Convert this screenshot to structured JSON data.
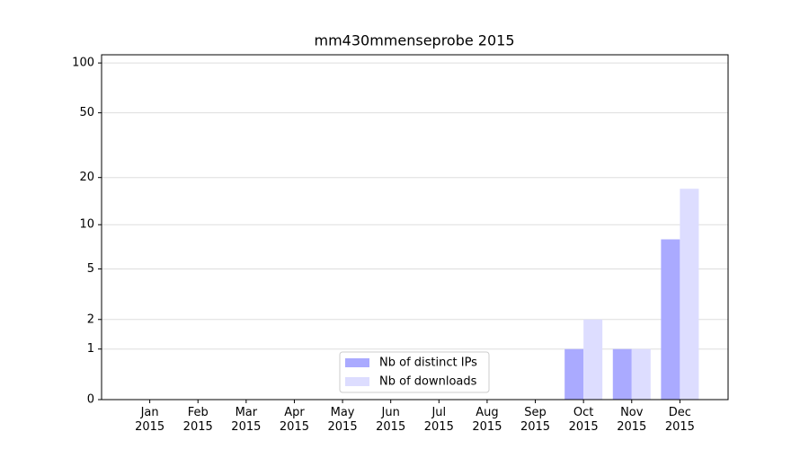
{
  "chart_data": {
    "type": "bar",
    "title": "mm430mmenseprobe 2015",
    "categories": [
      "Jan\n2015",
      "Feb\n2015",
      "Mar\n2015",
      "Apr\n2015",
      "May\n2015",
      "Jun\n2015",
      "Jul\n2015",
      "Aug\n2015",
      "Sep\n2015",
      "Oct\n2015",
      "Nov\n2015",
      "Dec\n2015"
    ],
    "series": [
      {
        "name": "Nb of distinct IPs",
        "color": "#aaaaff",
        "values": [
          0,
          0,
          0,
          0,
          0,
          0,
          0,
          0,
          0,
          1,
          1,
          8
        ]
      },
      {
        "name": "Nb of downloads",
        "color": "#ddddff",
        "values": [
          0,
          0,
          0,
          0,
          0,
          0,
          0,
          0,
          0,
          2,
          1,
          17
        ]
      }
    ],
    "yscale": "log1p",
    "ylim": [
      0,
      112
    ],
    "yticks": [
      0,
      1,
      2,
      5,
      10,
      20,
      50,
      100
    ],
    "grid": true,
    "legend": "lower center"
  }
}
